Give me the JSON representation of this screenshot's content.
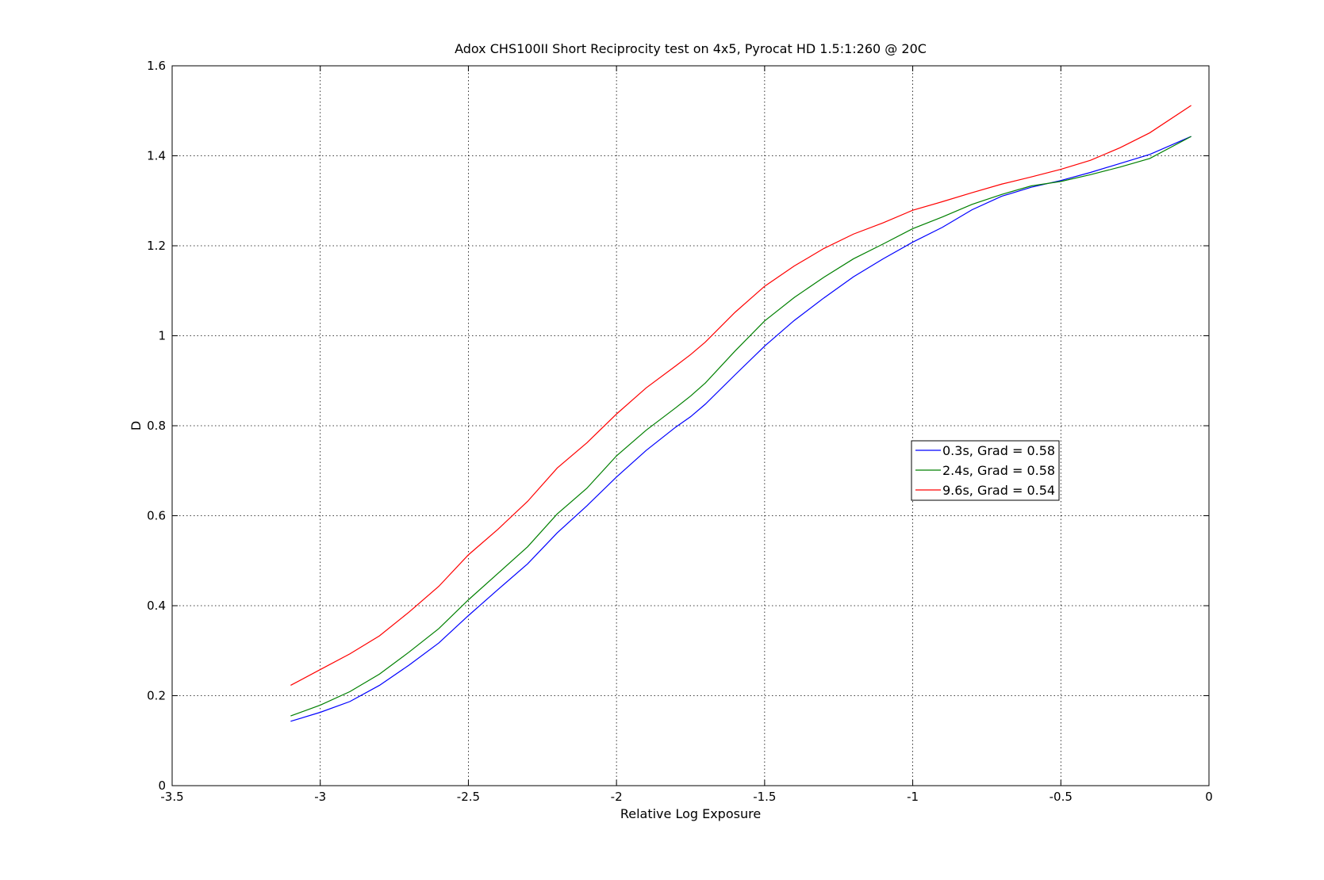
{
  "chart_data": {
    "type": "line",
    "title": "Adox CHS100II Short Reciprocity test on 4x5, Pyrocat HD 1.5:1:260 @ 20C",
    "xlabel": "Relative Log Exposure",
    "ylabel": "D",
    "xlim": [
      -3.5,
      0
    ],
    "ylim": [
      0,
      1.6
    ],
    "xticks": [
      -3.5,
      -3,
      -2.5,
      -2,
      -1.5,
      -1,
      -0.5,
      0
    ],
    "xtick_labels": [
      "-3.5",
      "-3",
      "-2.5",
      "-2",
      "-1.5",
      "-1",
      "-0.5",
      "0"
    ],
    "yticks": [
      0,
      0.2,
      0.4,
      0.6,
      0.8,
      1,
      1.2,
      1.4,
      1.6
    ],
    "ytick_labels": [
      "0",
      "0.2",
      "0.4",
      "0.6",
      "0.8",
      "1",
      "1.2",
      "1.4",
      "1.6"
    ],
    "grid": true,
    "legend_position": "right-middle",
    "series": [
      {
        "name": "0.3s, Grad = 0.58",
        "color": "#0000ff",
        "x": [
          -3.1,
          -3.0,
          -2.9,
          -2.8,
          -2.7,
          -2.6,
          -2.5,
          -2.4,
          -2.3,
          -2.2,
          -2.1,
          -2.0,
          -1.9,
          -1.8,
          -1.75,
          -1.7,
          -1.6,
          -1.5,
          -1.4,
          -1.3,
          -1.2,
          -1.1,
          -1.0,
          -0.9,
          -0.8,
          -0.7,
          -0.6,
          -0.5,
          -0.4,
          -0.3,
          -0.2,
          -0.06
        ],
        "y": [
          0.143,
          0.163,
          0.187,
          0.223,
          0.268,
          0.317,
          0.378,
          0.436,
          0.493,
          0.562,
          0.622,
          0.686,
          0.745,
          0.797,
          0.82,
          0.848,
          0.913,
          0.977,
          1.034,
          1.084,
          1.131,
          1.171,
          1.208,
          1.241,
          1.28,
          1.31,
          1.33,
          1.345,
          1.363,
          1.383,
          1.403,
          1.443
        ]
      },
      {
        "name": "2.4s, Grad = 0.58",
        "color": "#008000",
        "x": [
          -3.1,
          -3.0,
          -2.9,
          -2.8,
          -2.7,
          -2.6,
          -2.5,
          -2.4,
          -2.3,
          -2.2,
          -2.1,
          -2.0,
          -1.9,
          -1.8,
          -1.75,
          -1.7,
          -1.6,
          -1.5,
          -1.4,
          -1.3,
          -1.2,
          -1.1,
          -1.0,
          -0.9,
          -0.8,
          -0.7,
          -0.6,
          -0.5,
          -0.4,
          -0.3,
          -0.2,
          -0.06
        ],
        "y": [
          0.155,
          0.179,
          0.209,
          0.248,
          0.297,
          0.349,
          0.413,
          0.472,
          0.531,
          0.604,
          0.661,
          0.733,
          0.79,
          0.84,
          0.866,
          0.895,
          0.966,
          1.033,
          1.085,
          1.13,
          1.171,
          1.204,
          1.238,
          1.264,
          1.292,
          1.314,
          1.333,
          1.343,
          1.358,
          1.375,
          1.394,
          1.443
        ]
      },
      {
        "name": "9.6s, Grad = 0.54",
        "color": "#ff0000",
        "x": [
          -3.1,
          -3.0,
          -2.9,
          -2.8,
          -2.7,
          -2.6,
          -2.5,
          -2.4,
          -2.3,
          -2.2,
          -2.1,
          -2.0,
          -1.9,
          -1.8,
          -1.75,
          -1.7,
          -1.6,
          -1.5,
          -1.4,
          -1.3,
          -1.2,
          -1.1,
          -1.0,
          -0.9,
          -0.8,
          -0.7,
          -0.6,
          -0.5,
          -0.4,
          -0.3,
          -0.2,
          -0.06
        ],
        "y": [
          0.223,
          0.258,
          0.293,
          0.333,
          0.386,
          0.443,
          0.513,
          0.57,
          0.632,
          0.706,
          0.762,
          0.826,
          0.884,
          0.933,
          0.958,
          0.986,
          1.052,
          1.11,
          1.155,
          1.194,
          1.226,
          1.251,
          1.279,
          1.298,
          1.318,
          1.337,
          1.353,
          1.37,
          1.39,
          1.418,
          1.451,
          1.512
        ]
      }
    ]
  }
}
